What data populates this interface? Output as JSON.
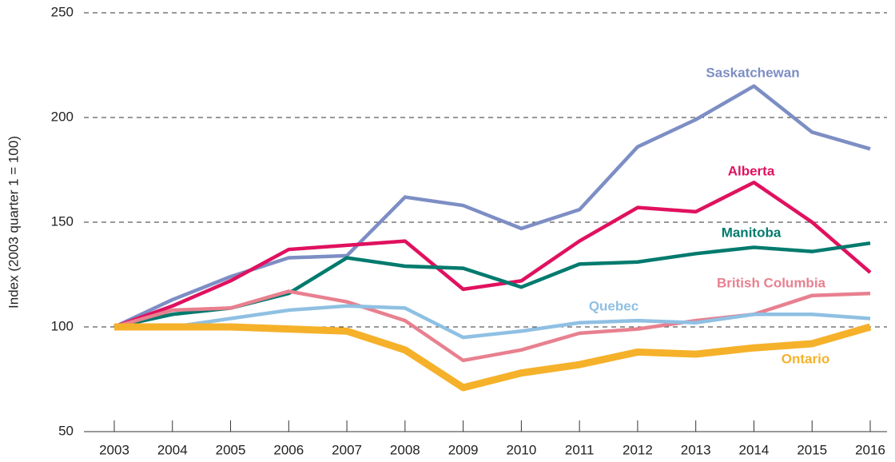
{
  "chart_data": {
    "type": "line",
    "y_label": "Index (2003 quarter 1 = 100)",
    "categories": [
      "2003",
      "2004",
      "2005",
      "2006",
      "2007",
      "2008",
      "2009",
      "2010",
      "2011",
      "2012",
      "2013",
      "2014",
      "2015",
      "2016"
    ],
    "series": [
      {
        "name": "Saskatchewan",
        "color": "#7d8ec4",
        "values": [
          100,
          113,
          124,
          133,
          134,
          162,
          158,
          147,
          156,
          186,
          199,
          215,
          193,
          185
        ]
      },
      {
        "name": "Alberta",
        "color": "#e0115f",
        "values": [
          100,
          110,
          122,
          137,
          139,
          141,
          118,
          122,
          141,
          157,
          155,
          169,
          150,
          126
        ]
      },
      {
        "name": "Manitoba",
        "color": "#007a6e",
        "values": [
          100,
          106,
          109,
          116,
          133,
          129,
          128,
          119,
          130,
          131,
          135,
          138,
          136,
          140
        ]
      },
      {
        "name": "British Columbia",
        "color": "#e8808f",
        "values": [
          100,
          108,
          109,
          117,
          112,
          103,
          84,
          89,
          97,
          99,
          103,
          106,
          115,
          116
        ]
      },
      {
        "name": "Quebec",
        "color": "#8fc0e3",
        "values": [
          100,
          100,
          104,
          108,
          110,
          109,
          95,
          98,
          102,
          103,
          102,
          106,
          106,
          104
        ]
      },
      {
        "name": "Ontario",
        "color": "#f5b12a",
        "values": [
          100,
          100,
          100,
          99,
          98,
          89,
          71,
          78,
          82,
          88,
          87,
          90,
          92,
          100
        ]
      }
    ],
    "ylim": [
      50,
      250
    ],
    "yticks": [
      50,
      100,
      150,
      200,
      250
    ],
    "grid": true
  }
}
